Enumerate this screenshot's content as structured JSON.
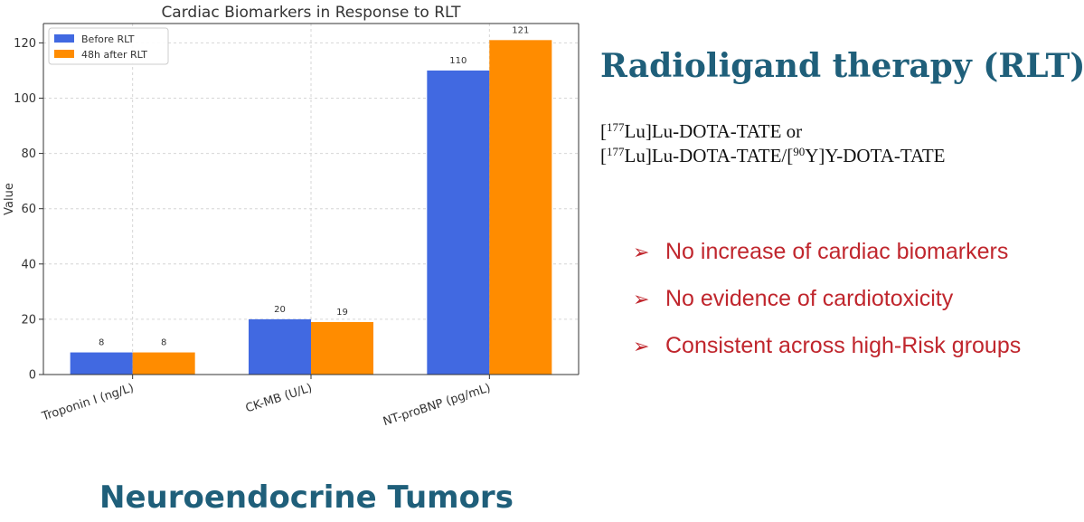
{
  "chart_data": {
    "type": "bar",
    "title": "Cardiac Biomarkers in Response to RLT",
    "xlabel": "",
    "ylabel": "Value",
    "categories": [
      "Troponin I (ng/L)",
      "CK-MB (U/L)",
      "NT-proBNP (pg/mL)"
    ],
    "series": [
      {
        "name": "Before RLT",
        "values": [
          8,
          20,
          110
        ],
        "color": "#4169e1"
      },
      {
        "name": "48h after RLT",
        "values": [
          8,
          19,
          121
        ],
        "color": "#ff8c00"
      }
    ],
    "ylim": [
      0,
      127
    ],
    "yticks": [
      0,
      20,
      40,
      60,
      80,
      100,
      120
    ],
    "grid": true,
    "legend": "top-left"
  },
  "panel": {
    "title": "Radioligand therapy (RLT)",
    "line1": {
      "pre": "[",
      "sup": "177",
      "post": "Lu]Lu-DOTA-TATE or"
    },
    "line2": {
      "pre": "[",
      "sup1": "177",
      "mid": "Lu]Lu-DOTA-TATE/[",
      "sup2": "90",
      "post": "Y]Y-DOTA-TATE"
    },
    "bullet_glyph": "➢",
    "bullets": [
      "No increase of cardiac biomarkers",
      "No evidence of cardiotoxicity",
      "Consistent across high-Risk groups"
    ]
  },
  "footer": {
    "title": "Neuroendocrine Tumors"
  }
}
